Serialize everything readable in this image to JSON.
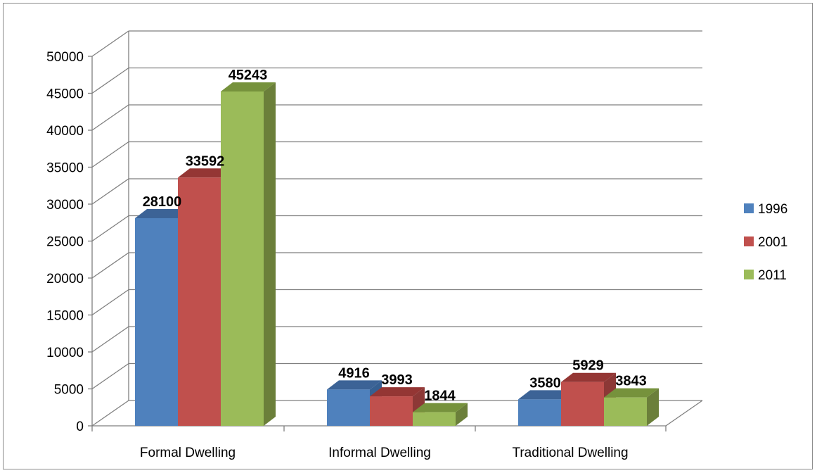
{
  "chart_data": {
    "type": "bar",
    "categories": [
      "Formal Dwelling",
      "Informal Dwelling",
      "Traditional Dwelling"
    ],
    "series": [
      {
        "name": "1996",
        "values": [
          28100,
          4916,
          3580
        ],
        "color": "#4F81BD",
        "top": "#3C6396",
        "side": "#365F91"
      },
      {
        "name": "2001",
        "values": [
          33592,
          3993,
          5929
        ],
        "color": "#C0504D",
        "top": "#943634",
        "side": "#8C3836"
      },
      {
        "name": "2011",
        "values": [
          45243,
          1844,
          3843
        ],
        "color": "#9BBB59",
        "top": "#76923C",
        "side": "#6B7F3A"
      }
    ],
    "ylim": [
      0,
      50000
    ],
    "yticks": [
      "0",
      "5000",
      "10000",
      "15000",
      "20000",
      "25000",
      "30000",
      "35000",
      "40000",
      "45000",
      "50000"
    ],
    "ytick_values": [
      0,
      5000,
      10000,
      15000,
      20000,
      25000,
      30000,
      35000,
      40000,
      45000,
      50000
    ],
    "grid": true,
    "legend": "right",
    "style": "3d-column"
  }
}
